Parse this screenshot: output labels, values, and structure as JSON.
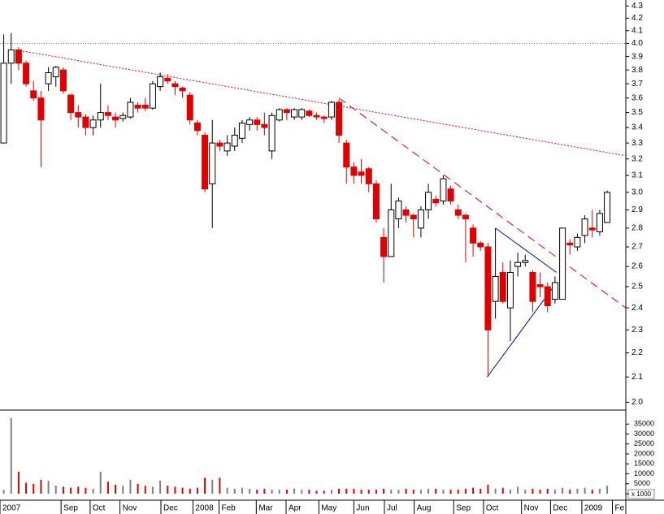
{
  "chart_data": {
    "type": "candlestick",
    "yscale": "log",
    "up_color": "#ffffff",
    "down_color": "#e00000",
    "outline_color": "#000000",
    "volume_up_color": "#808080",
    "xlim": [
      -0.5,
      83.5
    ],
    "ylim": [
      1.97,
      4.35
    ],
    "yticks": [
      {
        "value": 2,
        "label": "2.0"
      },
      2.1,
      2.2,
      2.3,
      2.4,
      2.5,
      2.6,
      2.7,
      2.8,
      2.9,
      {
        "value": 3,
        "label": "3.0"
      },
      3.1,
      3.2,
      3.3,
      3.4,
      3.5,
      3.6,
      3.7,
      3.8,
      3.9,
      {
        "value": 4,
        "label": "4.0"
      },
      4.1,
      4.2,
      4.3
    ],
    "vlim": [
      0,
      40000
    ],
    "vticks": [
      0,
      5000,
      10000,
      15000,
      20000,
      25000,
      30000,
      35000
    ],
    "volume_unit_label": "x 1000",
    "xticks": [
      {
        "value": -0.5,
        "label": "2007"
      },
      {
        "value": 7.7,
        "label": "Sep"
      },
      {
        "value": 11.6,
        "label": "Oct"
      },
      {
        "value": 15.6,
        "label": "Nov"
      },
      {
        "value": 21.1,
        "label": "Dec"
      },
      {
        "value": 25.4,
        "label": "2008"
      },
      {
        "value": 28.9,
        "label": "Feb"
      },
      {
        "value": 33.9,
        "label": "Mar"
      },
      {
        "value": 37.9,
        "label": "Apr"
      },
      {
        "value": 42.3,
        "label": "May"
      },
      {
        "value": 47.0,
        "label": "Jun"
      },
      {
        "value": 51.1,
        "label": "Jul"
      },
      {
        "value": 55.1,
        "label": "Aug"
      },
      {
        "value": 60.4,
        "label": "Sep"
      },
      {
        "value": 64.4,
        "label": "Oct"
      },
      {
        "value": 69.5,
        "label": "Nov"
      },
      {
        "value": 73.4,
        "label": "Dec"
      },
      {
        "value": 77.6,
        "label": "2009"
      },
      {
        "value": 81.7,
        "label": "Fe"
      }
    ],
    "open": [
      3.3,
      3.85,
      3.95,
      3.85,
      3.65,
      3.6,
      3.7,
      3.75,
      3.8,
      3.62,
      3.5,
      3.47,
      3.4,
      3.45,
      3.5,
      3.47,
      3.46,
      3.47,
      3.55,
      3.55,
      3.53,
      3.68,
      3.74,
      3.7,
      3.67,
      3.62,
      3.43,
      3.35,
      3.05,
      3.3,
      3.25,
      3.28,
      3.33,
      3.42,
      3.45,
      3.42,
      3.25,
      3.45,
      3.52,
      3.47,
      3.47,
      3.51,
      3.48,
      3.47,
      3.47,
      3.57,
      3.3,
      3.15,
      3.12,
      3.14,
      3.05,
      2.75,
      2.65,
      2.85,
      2.9,
      2.87,
      2.8,
      2.9,
      2.96,
      2.95,
      3.02,
      2.9,
      2.87,
      2.8,
      2.72,
      2.7,
      2.43,
      2.57,
      2.4,
      2.6,
      2.62,
      2.57,
      2.51,
      2.5,
      2.44,
      2.44,
      2.72,
      2.7,
      2.76,
      2.8,
      2.78,
      2.83
    ],
    "high": [
      4.07,
      4.08,
      3.97,
      3.87,
      3.72,
      3.65,
      3.82,
      3.83,
      3.82,
      3.63,
      3.55,
      3.49,
      3.48,
      3.7,
      3.55,
      3.5,
      3.5,
      3.6,
      3.57,
      3.6,
      3.72,
      3.78,
      3.77,
      3.72,
      3.68,
      3.64,
      3.45,
      3.37,
      3.45,
      3.32,
      3.35,
      3.4,
      3.45,
      3.47,
      3.47,
      3.5,
      3.5,
      3.53,
      3.53,
      3.53,
      3.53,
      3.52,
      3.5,
      3.48,
      3.58,
      3.59,
      3.32,
      3.18,
      3.2,
      3.15,
      3.07,
      2.8,
      3.05,
      2.97,
      2.92,
      2.88,
      2.92,
      3.05,
      2.98,
      3.1,
      3.04,
      2.93,
      2.88,
      2.82,
      2.73,
      2.72,
      2.8,
      2.62,
      2.63,
      2.67,
      2.66,
      2.58,
      2.57,
      2.52,
      2.55,
      2.8,
      2.74,
      2.77,
      2.87,
      2.9,
      2.9,
      3.01
    ],
    "low": [
      3.3,
      3.7,
      3.8,
      3.68,
      3.58,
      3.15,
      3.65,
      3.68,
      3.63,
      3.45,
      3.4,
      3.35,
      3.35,
      3.4,
      3.45,
      3.4,
      3.44,
      3.46,
      3.5,
      3.51,
      3.52,
      3.65,
      3.7,
      3.62,
      3.6,
      3.42,
      3.35,
      3.0,
      2.8,
      3.25,
      3.22,
      3.25,
      3.3,
      3.38,
      3.38,
      3.35,
      3.2,
      3.44,
      3.45,
      3.45,
      3.45,
      3.47,
      3.45,
      3.43,
      3.45,
      3.3,
      3.05,
      3.05,
      3.05,
      3.0,
      2.83,
      2.52,
      2.65,
      2.8,
      2.83,
      2.75,
      2.75,
      2.85,
      2.92,
      2.93,
      2.93,
      2.85,
      2.62,
      2.65,
      2.68,
      2.1,
      2.35,
      2.42,
      2.25,
      2.55,
      2.6,
      2.38,
      2.45,
      2.38,
      2.42,
      2.44,
      2.66,
      2.68,
      2.72,
      2.75,
      2.76,
      2.83
    ],
    "close": [
      3.85,
      3.95,
      3.85,
      3.7,
      3.6,
      3.45,
      3.78,
      3.82,
      3.65,
      3.5,
      3.47,
      3.4,
      3.45,
      3.5,
      3.48,
      3.45,
      3.48,
      3.57,
      3.53,
      3.53,
      3.7,
      3.75,
      3.72,
      3.68,
      3.65,
      3.45,
      3.38,
      3.02,
      3.3,
      3.28,
      3.3,
      3.35,
      3.43,
      3.45,
      3.42,
      3.4,
      3.48,
      3.52,
      3.5,
      3.52,
      3.52,
      3.48,
      3.47,
      3.46,
      3.57,
      3.35,
      3.15,
      3.1,
      3.1,
      3.05,
      2.85,
      2.65,
      2.9,
      2.95,
      2.87,
      2.85,
      2.9,
      3.0,
      2.94,
      3.08,
      2.95,
      2.87,
      2.85,
      2.72,
      2.7,
      2.3,
      2.55,
      2.43,
      2.57,
      2.62,
      2.63,
      2.43,
      2.5,
      2.41,
      2.52,
      2.8,
      2.71,
      2.75,
      2.85,
      2.79,
      2.88,
      3.0
    ],
    "volume": [
      2000,
      38000,
      11000,
      5500,
      5000,
      7000,
      6500,
      4000,
      3500,
      3000,
      3500,
      3000,
      2500,
      11000,
      6000,
      4500,
      4000,
      7000,
      5000,
      4000,
      3500,
      6500,
      4000,
      3500,
      3000,
      2500,
      3000,
      8000,
      7000,
      8000,
      3000,
      2500,
      3000,
      2500,
      2000,
      2500,
      2000,
      2000,
      2000,
      2500,
      2000,
      2000,
      1500,
      1500,
      2000,
      2500,
      2500,
      2500,
      2000,
      2000,
      2000,
      2500,
      2000,
      2000,
      2500,
      2000,
      2000,
      2500,
      2500,
      2000,
      2000,
      2000,
      2500,
      3000,
      2500,
      4500,
      2500,
      3000,
      2000,
      3500,
      2000,
      2500,
      2000,
      2500,
      2000,
      3000,
      2000,
      2500,
      3000,
      2000,
      2500,
      4000
    ],
    "trendlines": [
      {
        "points": [
          [
            -0.5,
            4.0
          ],
          [
            83.5,
            4.0
          ]
        ],
        "color": "#808080",
        "dash": "1,2"
      },
      {
        "points": [
          [
            1.7,
            3.95
          ],
          [
            83.5,
            3.22
          ]
        ],
        "color": "#e00000",
        "dash": "2,2"
      },
      {
        "points": [
          [
            45.0,
            3.6
          ],
          [
            83.5,
            2.4
          ]
        ],
        "color": "#e00000",
        "dash": "10,6"
      },
      {
        "points": [
          [
            66.0,
            2.8
          ],
          [
            74.2,
            2.57
          ]
        ],
        "color": "#0000cc",
        "dash": "none"
      },
      {
        "points": [
          [
            64.9,
            2.1
          ],
          [
            74.2,
            2.52
          ]
        ],
        "color": "#0000cc",
        "dash": "none"
      }
    ]
  }
}
